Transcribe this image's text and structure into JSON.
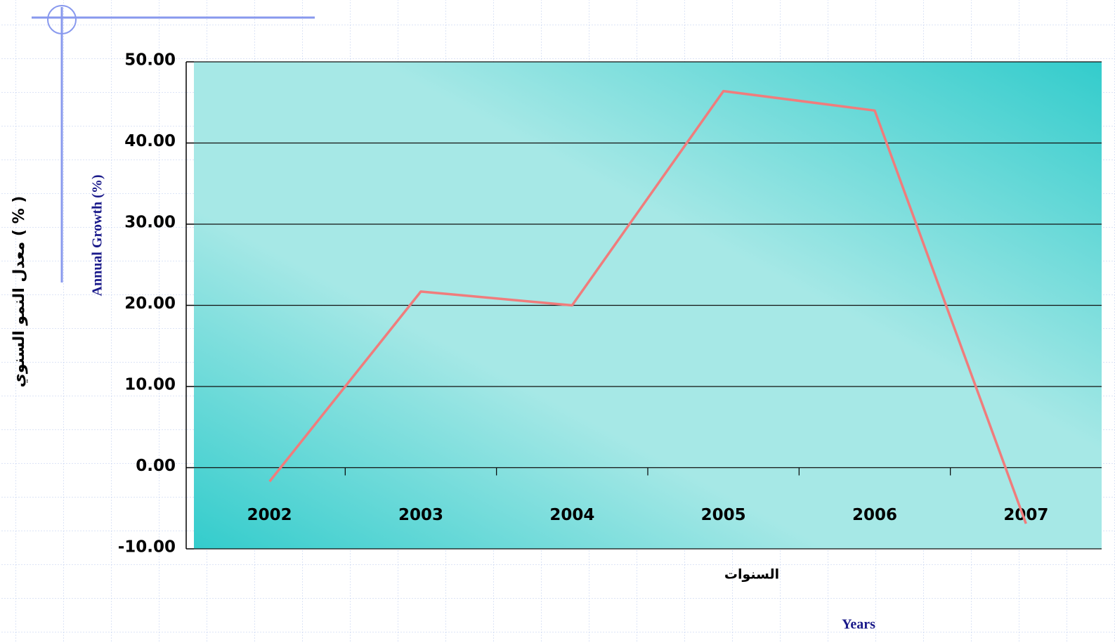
{
  "chart_data": {
    "type": "line",
    "y_label_ar": "معدل النمو السنوي ( % )",
    "y_label": "Annual Growth (%)",
    "x_label_ar": "السنوات",
    "x_label": "Years",
    "categories": [
      "2002",
      "2003",
      "2004",
      "2005",
      "2006",
      "2007"
    ],
    "series": [
      {
        "name": "Annual Growth (%)",
        "color": "#f07c7c",
        "values": [
          -1.7,
          21.7,
          20.0,
          46.4,
          44.0,
          -6.9
        ]
      }
    ],
    "ylim": [
      -10,
      50
    ],
    "yticks": [
      {
        "value": -10,
        "label": "-10.00"
      },
      {
        "value": 0,
        "label": "0.00"
      },
      {
        "value": 10,
        "label": "10.00"
      },
      {
        "value": 20,
        "label": "20.00"
      },
      {
        "value": 30,
        "label": "30.00"
      },
      {
        "value": 40,
        "label": "40.00"
      },
      {
        "value": 50,
        "label": "50.00"
      }
    ],
    "grid": true
  }
}
